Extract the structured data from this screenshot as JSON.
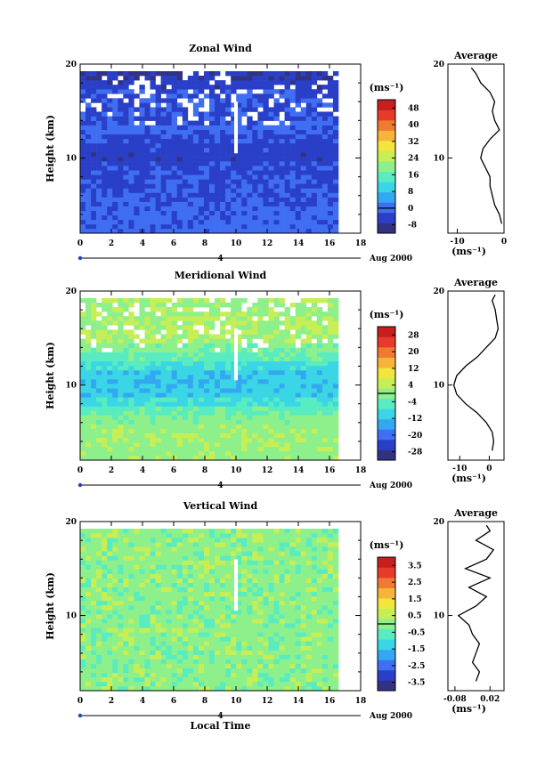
{
  "chart_data": [
    {
      "type": "heatmap",
      "title": "Zonal Wind",
      "ylabel": "Height (km)",
      "xlim": [
        0,
        18
      ],
      "ylim": [
        2,
        20
      ],
      "x_ticks": [
        "0",
        "2",
        "4",
        "6",
        "8",
        "10",
        "12",
        "14",
        "16",
        "18"
      ],
      "y_ticks": [
        "10",
        "20"
      ],
      "day_marker": "4",
      "date_label": "Aug 2000",
      "colorbar": {
        "unit": "(ms⁻¹)",
        "ticks": [
          "48",
          "40",
          "32",
          "24",
          "16",
          "8",
          "0",
          "-8"
        ],
        "min": -12,
        "max": 52
      },
      "profile": {
        "title": "Average",
        "xlim": [
          -12,
          0
        ],
        "x_ticks": [
          "-10",
          "0"
        ],
        "y_ticks": [
          "10",
          "20"
        ],
        "xlabel": "(ms⁻¹)",
        "points": [
          [
            -0.5,
            3
          ],
          [
            -1,
            4
          ],
          [
            -2,
            5
          ],
          [
            -2.5,
            6
          ],
          [
            -3,
            7
          ],
          [
            -3,
            8
          ],
          [
            -4,
            9
          ],
          [
            -5,
            10
          ],
          [
            -4.5,
            11
          ],
          [
            -3,
            12
          ],
          [
            -1,
            13
          ],
          [
            -2,
            14
          ],
          [
            -2.5,
            15
          ],
          [
            -2,
            16
          ],
          [
            -3,
            17
          ],
          [
            -5,
            18
          ],
          [
            -6,
            19
          ],
          [
            -7,
            19.6
          ]
        ]
      }
    },
    {
      "type": "heatmap",
      "title": "Meridional Wind",
      "ylabel": "Height (km)",
      "xlim": [
        0,
        18
      ],
      "ylim": [
        2,
        20
      ],
      "x_ticks": [
        "0",
        "2",
        "4",
        "6",
        "8",
        "10",
        "12",
        "14",
        "16",
        "18"
      ],
      "y_ticks": [
        "10",
        "20"
      ],
      "day_marker": "4",
      "date_label": "Aug 2000",
      "colorbar": {
        "unit": "(ms⁻¹)",
        "ticks": [
          "28",
          "20",
          "12",
          "4",
          "-4",
          "-12",
          "-20",
          "-28"
        ],
        "min": -32,
        "max": 32
      },
      "profile": {
        "title": "Average",
        "xlim": [
          -14,
          5
        ],
        "x_ticks": [
          "-10",
          "0"
        ],
        "y_ticks": [
          "10",
          "20"
        ],
        "xlabel": "(ms⁻¹)",
        "points": [
          [
            1,
            3
          ],
          [
            1.5,
            4
          ],
          [
            1,
            5
          ],
          [
            -1,
            6
          ],
          [
            -4,
            7
          ],
          [
            -8,
            8
          ],
          [
            -11,
            9
          ],
          [
            -12,
            10
          ],
          [
            -11,
            11
          ],
          [
            -8,
            12
          ],
          [
            -4,
            13
          ],
          [
            -1,
            14
          ],
          [
            2,
            15
          ],
          [
            3,
            16
          ],
          [
            2.5,
            17
          ],
          [
            2,
            18
          ],
          [
            1,
            19
          ],
          [
            2,
            19.6
          ]
        ]
      }
    },
    {
      "type": "heatmap",
      "title": "Vertical Wind",
      "xlabel": "Local Time",
      "ylabel": "Height (km)",
      "xlim": [
        0,
        18
      ],
      "ylim": [
        2,
        20
      ],
      "x_ticks": [
        "0",
        "2",
        "4",
        "6",
        "8",
        "10",
        "12",
        "14",
        "16",
        "18"
      ],
      "y_ticks": [
        "10",
        "20"
      ],
      "day_marker": "4",
      "date_label": "Aug 2000",
      "colorbar": {
        "unit": "(ms⁻¹)",
        "ticks": [
          "3.5",
          "2.5",
          "1.5",
          "0.5",
          "-0.5",
          "-1.5",
          "-2.5",
          "-3.5"
        ],
        "min": -4,
        "max": 4
      },
      "profile": {
        "title": "Average",
        "xlim": [
          -0.1,
          0.06
        ],
        "x_ticks": [
          "-0.08",
          "0.02"
        ],
        "y_ticks": [
          "10",
          "20"
        ],
        "xlabel": "(ms⁻¹)",
        "points": [
          [
            -0.02,
            3
          ],
          [
            -0.01,
            4
          ],
          [
            -0.03,
            5
          ],
          [
            -0.02,
            6
          ],
          [
            -0.01,
            7
          ],
          [
            -0.03,
            8
          ],
          [
            -0.04,
            9
          ],
          [
            -0.07,
            10
          ],
          [
            -0.02,
            11
          ],
          [
            0.01,
            12
          ],
          [
            -0.04,
            13
          ],
          [
            0.02,
            14
          ],
          [
            -0.05,
            15
          ],
          [
            0.01,
            16
          ],
          [
            0.03,
            17
          ],
          [
            -0.02,
            18
          ],
          [
            0.02,
            19
          ],
          [
            0.01,
            19.6
          ]
        ]
      }
    }
  ]
}
